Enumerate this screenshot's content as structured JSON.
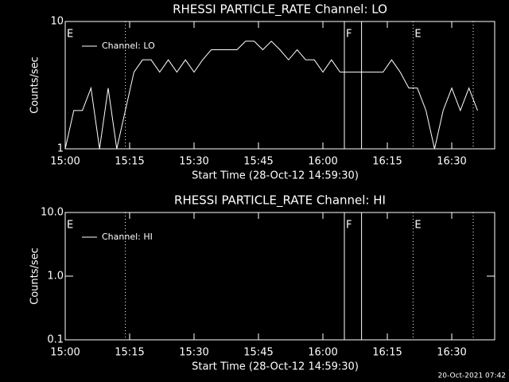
{
  "chart_data": [
    {
      "type": "line",
      "title": "RHESSI PARTICLE_RATE Channel: LO",
      "xlabel": "Start Time (28-Oct-12 14:59:30)",
      "ylabel": "Counts/sec",
      "x": [
        "15:00",
        "15:02",
        "15:04",
        "15:06",
        "15:08",
        "15:10",
        "15:12",
        "15:14",
        "15:16",
        "15:18",
        "15:20",
        "15:22",
        "15:24",
        "15:26",
        "15:28",
        "15:30",
        "15:32",
        "15:34",
        "15:36",
        "15:38",
        "15:40",
        "15:42",
        "15:44",
        "15:46",
        "15:48",
        "15:50",
        "15:52",
        "15:54",
        "15:56",
        "15:58",
        "16:00",
        "16:02",
        "16:04",
        "16:06",
        "16:08",
        "16:10",
        "16:12",
        "16:14",
        "16:16",
        "16:18",
        "16:20",
        "16:22",
        "16:24",
        "16:26",
        "16:28",
        "16:30",
        "16:32",
        "16:34",
        "16:36"
      ],
      "series": [
        {
          "name": "Channel: LO",
          "color": "#ffffff",
          "values": [
            1,
            2,
            2,
            3,
            1,
            3,
            1,
            2,
            4,
            5,
            5,
            4,
            5,
            4,
            5,
            4,
            5,
            6,
            6,
            6,
            6,
            7,
            7,
            6,
            7,
            6,
            5,
            6,
            5,
            5,
            4,
            5,
            4,
            4,
            4,
            4,
            4,
            4,
            5,
            4,
            3,
            3,
            2,
            1,
            2,
            3,
            2,
            3,
            2
          ]
        }
      ],
      "xlim": [
        "15:00",
        "16:40"
      ],
      "xticks": [
        "15:00",
        "15:15",
        "15:30",
        "15:45",
        "16:00",
        "16:15",
        "16:30"
      ],
      "ylim": [
        1,
        10
      ],
      "yticks": [
        1,
        10
      ],
      "log_y": true,
      "markers": [
        {
          "x": "15:14",
          "style": "dotted"
        },
        {
          "x": "16:05",
          "style": "solid"
        },
        {
          "x": "16:09",
          "style": "solid"
        },
        {
          "x": "16:21",
          "style": "dotted"
        },
        {
          "x": "16:35",
          "style": "dotted"
        }
      ],
      "flags": [
        {
          "x": "15:00",
          "label": "E"
        },
        {
          "x": "16:05",
          "label": "F"
        },
        {
          "x": "16:21",
          "label": "E"
        }
      ]
    },
    {
      "type": "line",
      "title": "RHESSI PARTICLE_RATE Channel: HI",
      "xlabel": "Start Time (28-Oct-12 14:59:30)",
      "ylabel": "Counts/sec",
      "x": [],
      "series": [
        {
          "name": "Channel: HI",
          "color": "#ffffff",
          "values": []
        }
      ],
      "xlim": [
        "15:00",
        "16:40"
      ],
      "xticks": [
        "15:00",
        "15:15",
        "15:30",
        "15:45",
        "16:00",
        "16:15",
        "16:30"
      ],
      "ylim": [
        0.1,
        10
      ],
      "yticks": [
        {
          "value": 0.1,
          "label": "0.1"
        },
        {
          "value": 1,
          "label": "1.0"
        },
        {
          "value": 10,
          "label": "10.0"
        }
      ],
      "log_y": true,
      "markers": [
        {
          "x": "15:14",
          "style": "dotted"
        },
        {
          "x": "16:05",
          "style": "solid"
        },
        {
          "x": "16:09",
          "style": "solid"
        },
        {
          "x": "16:21",
          "style": "dotted"
        },
        {
          "x": "16:35",
          "style": "dotted"
        }
      ],
      "flags": [
        {
          "x": "15:00",
          "label": "E"
        },
        {
          "x": "16:05",
          "label": "F"
        },
        {
          "x": "16:21",
          "label": "E"
        }
      ]
    }
  ],
  "footer": "20-Oct-2021 07:42"
}
